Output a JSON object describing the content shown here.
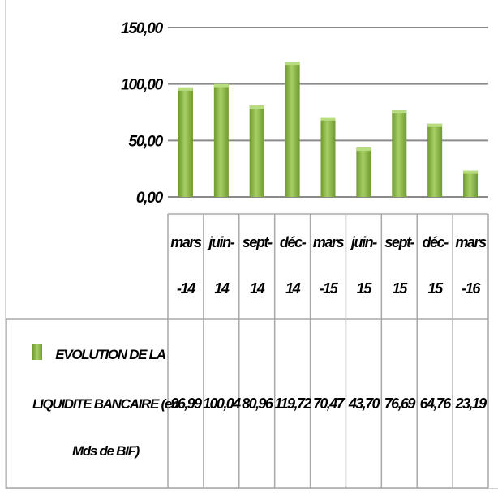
{
  "chart_data": {
    "type": "bar",
    "categories": [
      [
        "mars",
        "-14"
      ],
      [
        "juin-",
        "14"
      ],
      [
        "sept-",
        "14"
      ],
      [
        "déc-",
        "14"
      ],
      [
        "mars",
        "-15"
      ],
      [
        "juin-",
        "15"
      ],
      [
        "sept-",
        "15"
      ],
      [
        "déc-",
        "15"
      ],
      [
        "mars",
        "-16"
      ]
    ],
    "series": [
      {
        "name": "EVOLUTION DE LA LIQUIDITE BANCAIRE (en Mds de BIF)",
        "name_lines": [
          "EVOLUTION DE LA",
          "LIQUIDITE BANCAIRE (en",
          "Mds de BIF)"
        ],
        "values": [
          96.99,
          100.04,
          80.96,
          119.72,
          70.47,
          43.7,
          76.69,
          64.76,
          23.19
        ],
        "value_labels": [
          "96,99",
          "100,04",
          "80,96",
          "119,72",
          "70,47",
          "43,70",
          "76,69",
          "64,76",
          "23,19"
        ],
        "color": "#8cb84a"
      }
    ],
    "y_ticks": [
      "0,00",
      "50,00",
      "100,00",
      "150,00"
    ],
    "ylim": [
      0,
      150
    ],
    "grid": true,
    "legend": "data-table"
  }
}
